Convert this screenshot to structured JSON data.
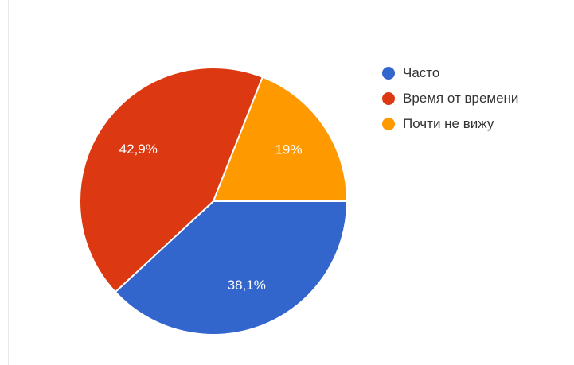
{
  "chart_data": {
    "type": "pie",
    "title": "",
    "categories": [
      "Часто",
      "Время от времени",
      "Почти не вижу"
    ],
    "values": [
      38.1,
      42.9,
      19
    ],
    "data_labels": [
      "38,1%",
      "42,9%",
      "19%"
    ],
    "colors": [
      "#3366cc",
      "#dc3912",
      "#ff9900"
    ],
    "legend_position": "right",
    "start_angle": "3 o'clock, clockwise"
  }
}
